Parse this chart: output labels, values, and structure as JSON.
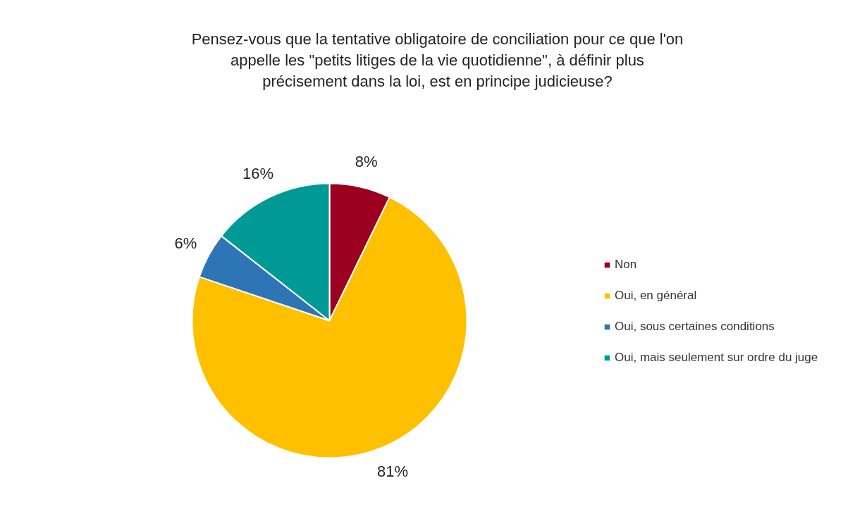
{
  "chart_data": {
    "type": "pie",
    "title": "Pensez-vous que la tentative obligatoire de conciliation pour ce que l'on appelle les \"petits litiges de la vie quotidienne\", à définir plus précisement dans la loi, est en principe judicieuse?",
    "categories": [
      "Non",
      "Oui, en général",
      "Oui, sous certaines conditions",
      "Oui, mais seulement sur ordre du juge"
    ],
    "values": [
      8,
      81,
      6,
      16
    ],
    "value_labels": [
      "8%",
      "81%",
      "6%",
      "16%"
    ],
    "colors": [
      "#9b0020",
      "#ffc000",
      "#2e75b6",
      "#009a96"
    ],
    "legend": "right"
  }
}
